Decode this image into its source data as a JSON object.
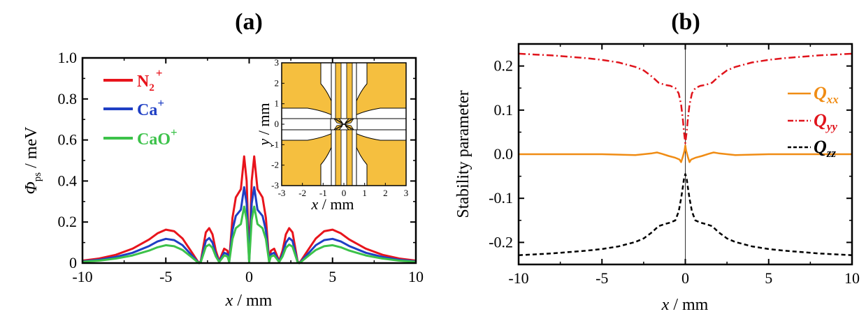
{
  "figure": {
    "panel_a_label": "(a)",
    "panel_b_label": "(b)"
  },
  "chart_data": [
    {
      "type": "line",
      "panel": "(a)",
      "xlabel_var": "x",
      "xlabel_unit": " / mm",
      "ylabel_symbol": "Φ",
      "ylabel_sub": "ps",
      "ylabel_unit": " / meV",
      "xlim": [
        -10,
        10
      ],
      "ylim": [
        0,
        1.0
      ],
      "xticks": [
        "-10",
        "-5",
        "0",
        "5",
        "10"
      ],
      "yticks": [
        "0",
        "0.2",
        "0.4",
        "0.6",
        "0.8",
        "1.0"
      ],
      "legend_position": "top-left",
      "series": [
        {
          "name": "N2+",
          "label_main": "N",
          "label_sub": "2",
          "label_sup": "+",
          "color": "#e8141c",
          "x": [
            -10,
            -9,
            -8,
            -7,
            -6,
            -5.5,
            -5,
            -4.5,
            -4,
            -3.5,
            -3.1,
            -3.0,
            -2.9,
            -2.6,
            -2.4,
            -2.2,
            -2.0,
            -1.8,
            -1.5,
            -1.3,
            -1.2,
            -1.0,
            -0.8,
            -0.5,
            -0.3,
            -0.15,
            0,
            0.15,
            0.3,
            0.5,
            0.8,
            1.0,
            1.2,
            1.3,
            1.5,
            1.8,
            2.0,
            2.2,
            2.4,
            2.6,
            2.9,
            3.0,
            3.1,
            3.5,
            4,
            4.5,
            5,
            5.5,
            6,
            7,
            8,
            9,
            10
          ],
          "y": [
            0.012,
            0.022,
            0.04,
            0.07,
            0.115,
            0.145,
            0.163,
            0.155,
            0.12,
            0.06,
            0.01,
            0,
            0.01,
            0.15,
            0.17,
            0.14,
            0.06,
            0.01,
            0.07,
            0.06,
            0.01,
            0.22,
            0.32,
            0.36,
            0.52,
            0.4,
            0.01,
            0.4,
            0.52,
            0.36,
            0.32,
            0.22,
            0.01,
            0.06,
            0.07,
            0.01,
            0.06,
            0.14,
            0.17,
            0.15,
            0.01,
            0,
            0.01,
            0.06,
            0.12,
            0.155,
            0.163,
            0.145,
            0.115,
            0.07,
            0.04,
            0.022,
            0.012
          ]
        },
        {
          "name": "Ca+",
          "label_main": "Ca",
          "label_sub": "",
          "label_sup": "+",
          "color": "#1f3fc4",
          "x": [
            -10,
            -9,
            -8,
            -7,
            -6,
            -5.5,
            -5,
            -4.5,
            -4,
            -3.5,
            -3.1,
            -3.0,
            -2.9,
            -2.6,
            -2.4,
            -2.2,
            -2.0,
            -1.8,
            -1.5,
            -1.3,
            -1.2,
            -1.0,
            -0.8,
            -0.5,
            -0.3,
            -0.15,
            0,
            0.15,
            0.3,
            0.5,
            0.8,
            1.0,
            1.2,
            1.3,
            1.5,
            1.8,
            2.0,
            2.2,
            2.4,
            2.6,
            2.9,
            3.0,
            3.1,
            3.5,
            4,
            4.5,
            5,
            5.5,
            6,
            7,
            8,
            9,
            10
          ],
          "y": [
            0.008,
            0.016,
            0.03,
            0.05,
            0.083,
            0.105,
            0.118,
            0.112,
            0.087,
            0.043,
            0.007,
            0,
            0.007,
            0.108,
            0.122,
            0.1,
            0.043,
            0.007,
            0.05,
            0.043,
            0.007,
            0.16,
            0.23,
            0.26,
            0.37,
            0.29,
            0.007,
            0.29,
            0.37,
            0.26,
            0.23,
            0.16,
            0.007,
            0.043,
            0.05,
            0.007,
            0.043,
            0.1,
            0.122,
            0.108,
            0.007,
            0,
            0.007,
            0.043,
            0.087,
            0.112,
            0.118,
            0.105,
            0.083,
            0.05,
            0.03,
            0.016,
            0.008
          ]
        },
        {
          "name": "CaO+",
          "label_main": "CaO",
          "label_sub": "",
          "label_sup": "+",
          "color": "#3cc24a",
          "x": [
            -10,
            -9,
            -8,
            -7,
            -6,
            -5.5,
            -5,
            -4.5,
            -4,
            -3.5,
            -3.1,
            -3.0,
            -2.9,
            -2.6,
            -2.4,
            -2.2,
            -2.0,
            -1.8,
            -1.5,
            -1.3,
            -1.2,
            -1.0,
            -0.8,
            -0.5,
            -0.3,
            -0.15,
            0,
            0.15,
            0.3,
            0.5,
            0.8,
            1.0,
            1.2,
            1.3,
            1.5,
            1.8,
            2.0,
            2.2,
            2.4,
            2.6,
            2.9,
            3.0,
            3.1,
            3.5,
            4,
            4.5,
            5,
            5.5,
            6,
            7,
            8,
            9,
            10
          ],
          "y": [
            0.006,
            0.012,
            0.022,
            0.037,
            0.061,
            0.077,
            0.087,
            0.082,
            0.064,
            0.032,
            0.005,
            0,
            0.005,
            0.08,
            0.09,
            0.074,
            0.032,
            0.005,
            0.037,
            0.032,
            0.005,
            0.117,
            0.17,
            0.19,
            0.275,
            0.21,
            0.005,
            0.21,
            0.275,
            0.19,
            0.17,
            0.117,
            0.005,
            0.032,
            0.037,
            0.005,
            0.032,
            0.074,
            0.09,
            0.08,
            0.005,
            0,
            0.005,
            0.032,
            0.064,
            0.082,
            0.087,
            0.077,
            0.061,
            0.037,
            0.022,
            0.012,
            0.006
          ]
        }
      ],
      "inset": {
        "xlabel_var": "x",
        "xlabel_unit": " / mm",
        "ylabel_var": "y",
        "ylabel_unit": " / mm",
        "xlim": [
          -3,
          3
        ],
        "ylim": [
          -3,
          3
        ],
        "xticks": [
          "-3",
          "-2",
          "-1",
          "0",
          "1",
          "2",
          "3"
        ],
        "yticks": [
          "-3",
          "-2",
          "-1",
          "0",
          "1",
          "2",
          "3"
        ],
        "electrode_color": "#f5bf3f"
      }
    },
    {
      "type": "line",
      "panel": "(b)",
      "xlabel_var": "x",
      "xlabel_unit": " / mm",
      "ylabel": "Stability parameter",
      "xlim": [
        -10,
        10
      ],
      "ylim": [
        -0.25,
        0.25
      ],
      "xticks": [
        "-10",
        "-5",
        "0",
        "5",
        "10"
      ],
      "yticks": [
        "-0.2",
        "-0.1",
        "0.0",
        "0.1",
        "0.2"
      ],
      "legend_position": "right",
      "series": [
        {
          "name": "Qxx",
          "label_main": "Q",
          "label_sub": "xx",
          "color": "#f08c14",
          "dash": "solid",
          "x": [
            -10,
            -5,
            -3,
            -2,
            -1.7,
            -1.4,
            -1,
            -0.6,
            -0.35,
            -0.25,
            -0.15,
            -0.05,
            0,
            0.05,
            0.15,
            0.25,
            0.35,
            0.6,
            1,
            1.4,
            1.7,
            2,
            3,
            5,
            10
          ],
          "y": [
            0,
            0,
            -0.002,
            0.002,
            0.004,
            0.001,
            -0.004,
            -0.008,
            -0.012,
            -0.018,
            -0.006,
            0.008,
            0.02,
            0.008,
            -0.006,
            -0.018,
            -0.012,
            -0.008,
            -0.004,
            0.001,
            0.004,
            0.002,
            -0.002,
            0,
            0
          ]
        },
        {
          "name": "Qyy",
          "label_main": "Q",
          "label_sub": "yy",
          "color": "#e0141c",
          "dash": "dashdot",
          "x": [
            -10,
            -9,
            -8,
            -7,
            -6,
            -5,
            -4,
            -3,
            -2.5,
            -2,
            -1.6,
            -1.2,
            -0.9,
            -0.6,
            -0.4,
            -0.25,
            -0.15,
            -0.08,
            0,
            0.08,
            0.15,
            0.25,
            0.4,
            0.6,
            0.9,
            1.2,
            1.6,
            2,
            2.5,
            3,
            4,
            5,
            6,
            7,
            8,
            9,
            10
          ],
          "y": [
            0.228,
            0.226,
            0.224,
            0.221,
            0.218,
            0.214,
            0.208,
            0.198,
            0.19,
            0.176,
            0.162,
            0.157,
            0.155,
            0.15,
            0.138,
            0.112,
            0.08,
            0.05,
            0.025,
            0.05,
            0.08,
            0.112,
            0.138,
            0.15,
            0.155,
            0.157,
            0.162,
            0.176,
            0.19,
            0.198,
            0.208,
            0.214,
            0.218,
            0.221,
            0.224,
            0.226,
            0.228
          ]
        },
        {
          "name": "Qzz",
          "label_main": "Q",
          "label_sub": "zz",
          "color": "#000000",
          "dash": "dashed",
          "x": [
            -10,
            -9,
            -8,
            -7,
            -6,
            -5,
            -4,
            -3,
            -2.5,
            -2,
            -1.6,
            -1.2,
            -0.9,
            -0.6,
            -0.4,
            -0.25,
            -0.15,
            -0.08,
            0,
            0.08,
            0.15,
            0.25,
            0.4,
            0.6,
            0.9,
            1.2,
            1.6,
            2,
            2.5,
            3,
            4,
            5,
            6,
            7,
            8,
            9,
            10
          ],
          "y": [
            -0.229,
            -0.227,
            -0.225,
            -0.222,
            -0.219,
            -0.215,
            -0.209,
            -0.199,
            -0.191,
            -0.177,
            -0.163,
            -0.158,
            -0.155,
            -0.15,
            -0.13,
            -0.1,
            -0.075,
            -0.055,
            -0.045,
            -0.055,
            -0.075,
            -0.1,
            -0.13,
            -0.15,
            -0.155,
            -0.158,
            -0.163,
            -0.177,
            -0.191,
            -0.199,
            -0.209,
            -0.215,
            -0.219,
            -0.222,
            -0.225,
            -0.227,
            -0.229
          ]
        }
      ]
    }
  ]
}
